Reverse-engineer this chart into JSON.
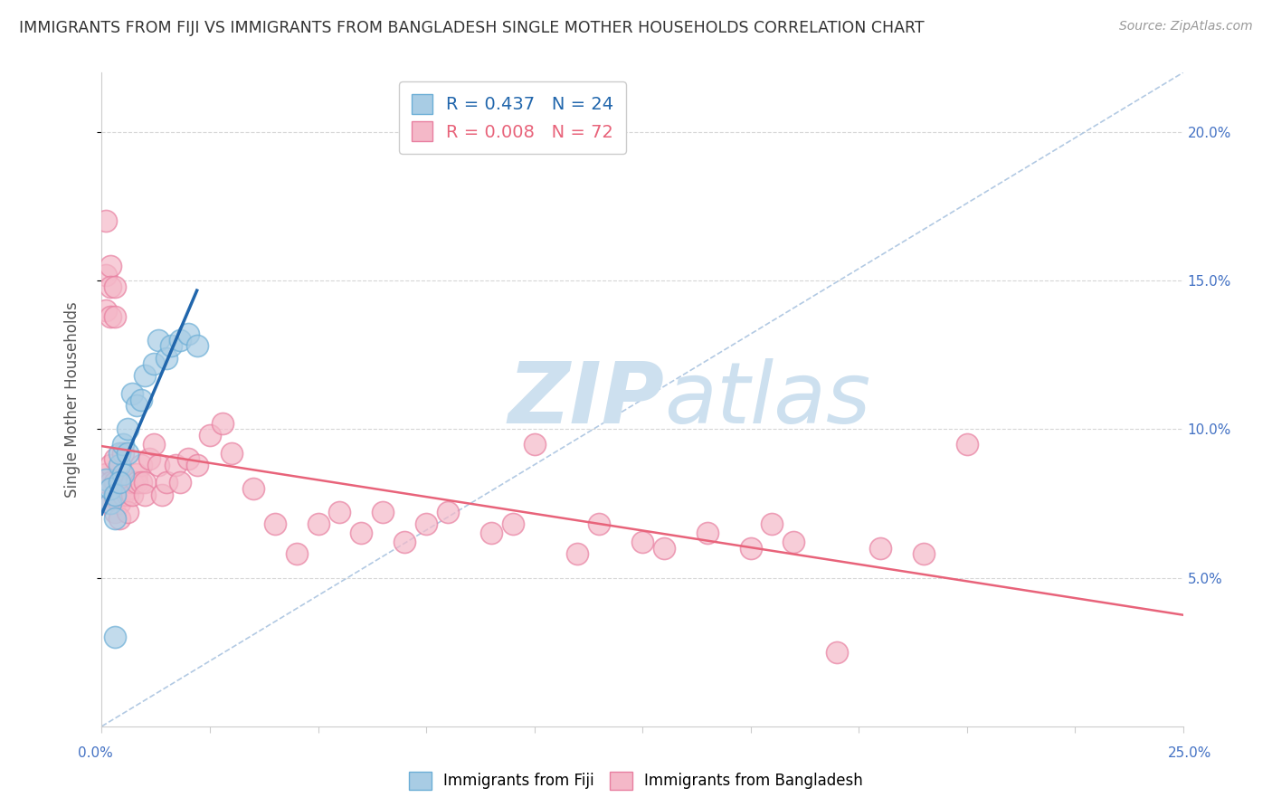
{
  "title": "IMMIGRANTS FROM FIJI VS IMMIGRANTS FROM BANGLADESH SINGLE MOTHER HOUSEHOLDS CORRELATION CHART",
  "source": "Source: ZipAtlas.com",
  "ylabel": "Single Mother Households",
  "xmin": 0.0,
  "xmax": 0.25,
  "ymin": 0.0,
  "ymax": 0.22,
  "fiji_R": 0.437,
  "fiji_N": 24,
  "bangladesh_R": 0.008,
  "bangladesh_N": 72,
  "fiji_color": "#a8cce4",
  "fiji_edge_color": "#6baed6",
  "bangladesh_color": "#f4b8c8",
  "bangladesh_edge_color": "#e87fa0",
  "fiji_trend_color": "#2166ac",
  "bangladesh_trend_color": "#e8637a",
  "dashed_line_color": "#aac4e0",
  "background_color": "#ffffff",
  "watermark_color": "#cde0ef",
  "ytick_right_color": "#4472c4",
  "xtick_color": "#4472c4",
  "grid_color": "#cccccc",
  "fiji_x": [
    0.001,
    0.002,
    0.002,
    0.003,
    0.003,
    0.004,
    0.004,
    0.005,
    0.005,
    0.006,
    0.006,
    0.007,
    0.008,
    0.009,
    0.01,
    0.012,
    0.013,
    0.015,
    0.016,
    0.018,
    0.02,
    0.022,
    0.003,
    0.004
  ],
  "fiji_y": [
    0.083,
    0.075,
    0.08,
    0.07,
    0.078,
    0.088,
    0.092,
    0.085,
    0.095,
    0.1,
    0.092,
    0.112,
    0.108,
    0.11,
    0.118,
    0.122,
    0.13,
    0.124,
    0.128,
    0.13,
    0.132,
    0.128,
    0.03,
    0.082
  ],
  "bangladesh_x": [
    0.001,
    0.001,
    0.001,
    0.001,
    0.001,
    0.002,
    0.002,
    0.002,
    0.002,
    0.002,
    0.002,
    0.003,
    0.003,
    0.003,
    0.003,
    0.003,
    0.003,
    0.004,
    0.004,
    0.004,
    0.004,
    0.005,
    0.005,
    0.005,
    0.006,
    0.006,
    0.006,
    0.007,
    0.007,
    0.008,
    0.008,
    0.009,
    0.009,
    0.01,
    0.01,
    0.011,
    0.012,
    0.013,
    0.014,
    0.015,
    0.017,
    0.018,
    0.02,
    0.022,
    0.025,
    0.028,
    0.03,
    0.035,
    0.04,
    0.045,
    0.05,
    0.055,
    0.06,
    0.065,
    0.07,
    0.075,
    0.08,
    0.09,
    0.095,
    0.1,
    0.11,
    0.115,
    0.125,
    0.13,
    0.14,
    0.15,
    0.155,
    0.16,
    0.17,
    0.18,
    0.19,
    0.2
  ],
  "bangladesh_y": [
    0.082,
    0.17,
    0.152,
    0.14,
    0.085,
    0.155,
    0.148,
    0.138,
    0.088,
    0.082,
    0.075,
    0.148,
    0.138,
    0.09,
    0.082,
    0.077,
    0.072,
    0.082,
    0.078,
    0.075,
    0.07,
    0.082,
    0.078,
    0.092,
    0.08,
    0.078,
    0.072,
    0.082,
    0.078,
    0.085,
    0.082,
    0.088,
    0.082,
    0.082,
    0.078,
    0.09,
    0.095,
    0.088,
    0.078,
    0.082,
    0.088,
    0.082,
    0.09,
    0.088,
    0.098,
    0.102,
    0.092,
    0.08,
    0.068,
    0.058,
    0.068,
    0.072,
    0.065,
    0.072,
    0.062,
    0.068,
    0.072,
    0.065,
    0.068,
    0.095,
    0.058,
    0.068,
    0.062,
    0.06,
    0.065,
    0.06,
    0.068,
    0.062,
    0.025,
    0.06,
    0.058,
    0.095
  ]
}
